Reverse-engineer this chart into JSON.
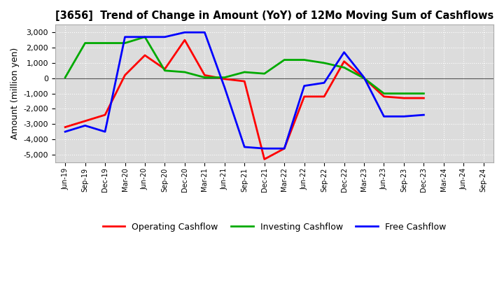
{
  "title": "[3656]  Trend of Change in Amount (YoY) of 12Mo Moving Sum of Cashflows",
  "ylabel": "Amount (million yen)",
  "ylim": [
    -5500,
    3500
  ],
  "yticks": [
    -5000,
    -4000,
    -3000,
    -2000,
    -1000,
    0,
    1000,
    2000,
    3000
  ],
  "background_color": "#ffffff",
  "plot_background": "#dcdcdc",
  "x_labels": [
    "Jun-19",
    "Sep-19",
    "Dec-19",
    "Mar-20",
    "Jun-20",
    "Sep-20",
    "Dec-20",
    "Mar-21",
    "Jun-21",
    "Sep-21",
    "Dec-21",
    "Mar-22",
    "Jun-22",
    "Sep-22",
    "Dec-22",
    "Mar-23",
    "Jun-23",
    "Sep-23",
    "Dec-23",
    "Mar-24",
    "Jun-24",
    "Sep-24"
  ],
  "operating": [
    -3200,
    -2800,
    -2400,
    200,
    1500,
    600,
    2500,
    200,
    -50,
    -200,
    -5300,
    -4600,
    -1200,
    -1200,
    1100,
    0,
    -1200,
    -1300,
    -1300,
    null,
    null,
    null
  ],
  "investing": [
    50,
    2300,
    2300,
    2300,
    2700,
    500,
    400,
    50,
    50,
    400,
    300,
    1200,
    1200,
    1000,
    700,
    0,
    -1000,
    -1000,
    -1000,
    null,
    null,
    null
  ],
  "free": [
    -3500,
    -3100,
    -3500,
    2700,
    2700,
    2700,
    3000,
    3000,
    -600,
    -4500,
    -4600,
    -4600,
    -500,
    -300,
    1700,
    50,
    -2500,
    -2500,
    -2400,
    null,
    null,
    null
  ],
  "line_colors": {
    "operating": "#ff0000",
    "investing": "#00aa00",
    "free": "#0000ff"
  },
  "line_width": 2.0,
  "legend_labels": [
    "Operating Cashflow",
    "Investing Cashflow",
    "Free Cashflow"
  ]
}
